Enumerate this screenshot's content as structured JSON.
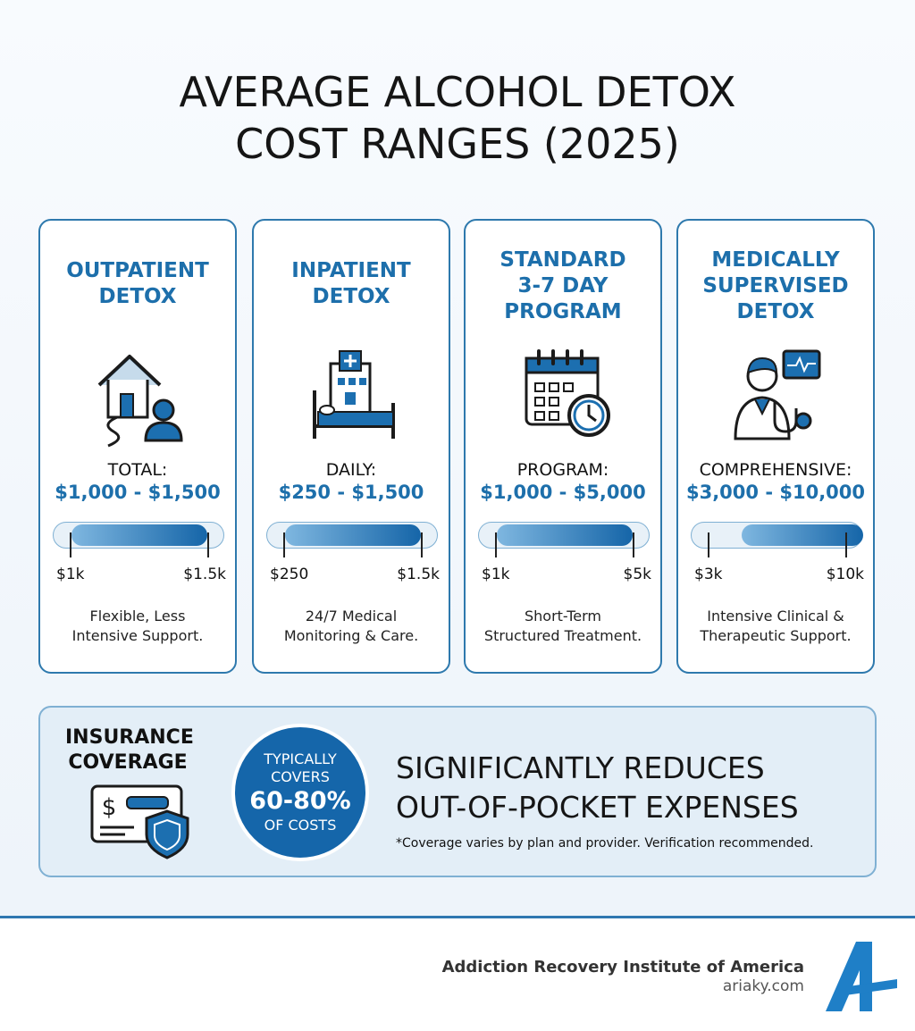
{
  "header": {
    "title": [
      "AVERAGE ALCOHOL DETOX",
      "COST RANGES (2025)"
    ]
  },
  "cards": [
    {
      "title": [
        "OUTPATIENT",
        "DETOX"
      ],
      "cost_label": "TOTAL:",
      "cost": "$1,000 - $1,500",
      "scale_min": "$1k",
      "scale_max": "$1.5k",
      "description": [
        "Flexible, Less",
        "Intensive Support."
      ]
    },
    {
      "title": [
        "INPATIENT",
        "DETOX"
      ],
      "cost_label": "DAILY:",
      "cost": "$250 - $1,500",
      "scale_min": "$250",
      "scale_max": "$1.5k",
      "description": [
        "24/7 Medical",
        "Monitoring & Care."
      ]
    },
    {
      "title": [
        "STANDARD",
        "3-7 DAY",
        "PROGRAM"
      ],
      "cost_label": "PROGRAM:",
      "cost": "$1,000 - $5,000",
      "scale_min": "$1k",
      "scale_max": "$5k",
      "description": [
        "Short-Term",
        "Structured Treatment."
      ]
    },
    {
      "title": [
        "MEDICALLY",
        "SUPERVISED",
        "DETOX"
      ],
      "cost_label": "COMPREHENSIVE:",
      "cost": "$3,000 - $10,000",
      "scale_min": "$3k",
      "scale_max": "$10k",
      "description": [
        "Intensive Clinical &",
        "Therapeutic Support."
      ]
    }
  ],
  "insurance": {
    "title": [
      "INSURANCE",
      "COVERAGE"
    ],
    "badge": [
      "TYPICALLY",
      "COVERS",
      "60-80%",
      "OF COSTS"
    ],
    "headline": [
      "SIGNIFICANTLY REDUCES",
      "OUT-OF-POCKET EXPENSES"
    ],
    "note": "*Coverage varies by plan and provider. Verification recommended."
  },
  "footer": {
    "organization": "Addiction Recovery Institute of America",
    "website": "ariaky.com"
  }
}
